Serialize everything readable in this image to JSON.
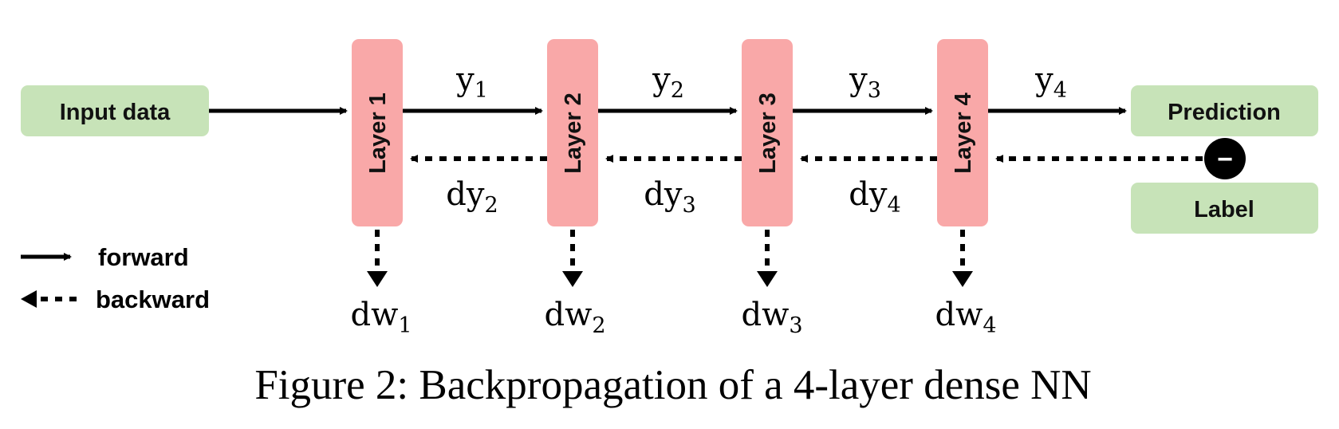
{
  "nodes": {
    "input": "Input data",
    "layers": [
      "Layer 1",
      "Layer 2",
      "Layer 3",
      "Layer 4"
    ],
    "prediction": "Prediction",
    "label": "Label"
  },
  "activations": [
    {
      "base": "y",
      "sub": "1"
    },
    {
      "base": "y",
      "sub": "2"
    },
    {
      "base": "y",
      "sub": "3"
    },
    {
      "base": "y",
      "sub": "4"
    }
  ],
  "gradients": [
    {
      "base": "dy",
      "sub": "2"
    },
    {
      "base": "dy",
      "sub": "3"
    },
    {
      "base": "dy",
      "sub": "4"
    }
  ],
  "weight_gradients": [
    {
      "base": "dw",
      "sub": "1"
    },
    {
      "base": "dw",
      "sub": "2"
    },
    {
      "base": "dw",
      "sub": "3"
    },
    {
      "base": "dw",
      "sub": "4"
    }
  ],
  "subtract_symbol": "−",
  "legend": {
    "forward": "forward",
    "backward": "backward"
  },
  "caption": "Figure 2: Backpropagation of a 4-layer dense NN",
  "colors": {
    "green_box": "#c7e3b8",
    "pink_box": "#f9a8a8",
    "ink": "#000000"
  }
}
